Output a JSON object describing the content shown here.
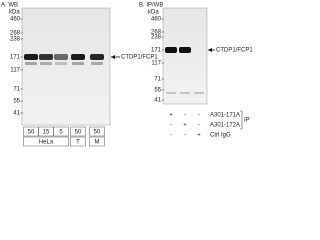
{
  "panel_a": {
    "title": "A. WB",
    "unit": "kDa",
    "markers": [
      "460",
      "268",
      "238",
      "171",
      "117",
      "71",
      "55",
      "41"
    ],
    "band_label": "CTDP1/FCP1",
    "lanes": [
      "50",
      "15",
      "5",
      "50",
      "50"
    ],
    "groups": [
      "HeLa",
      "T",
      "M"
    ]
  },
  "panel_b": {
    "title": "B. IP/WB",
    "unit": "kDa",
    "markers": [
      "460",
      "268",
      "238",
      "171",
      "117",
      "71",
      "55",
      "41"
    ],
    "band_label": "CTDP1/FCP1",
    "rows": [
      {
        "label": "A301-171A",
        "signs": [
          "+",
          "-",
          "-"
        ]
      },
      {
        "label": "A301-172A",
        "signs": [
          "-",
          "+",
          "-"
        ]
      },
      {
        "label": "Ctrl IgG",
        "signs": [
          "-",
          "-",
          "+"
        ]
      }
    ],
    "ip_label": "IP"
  }
}
